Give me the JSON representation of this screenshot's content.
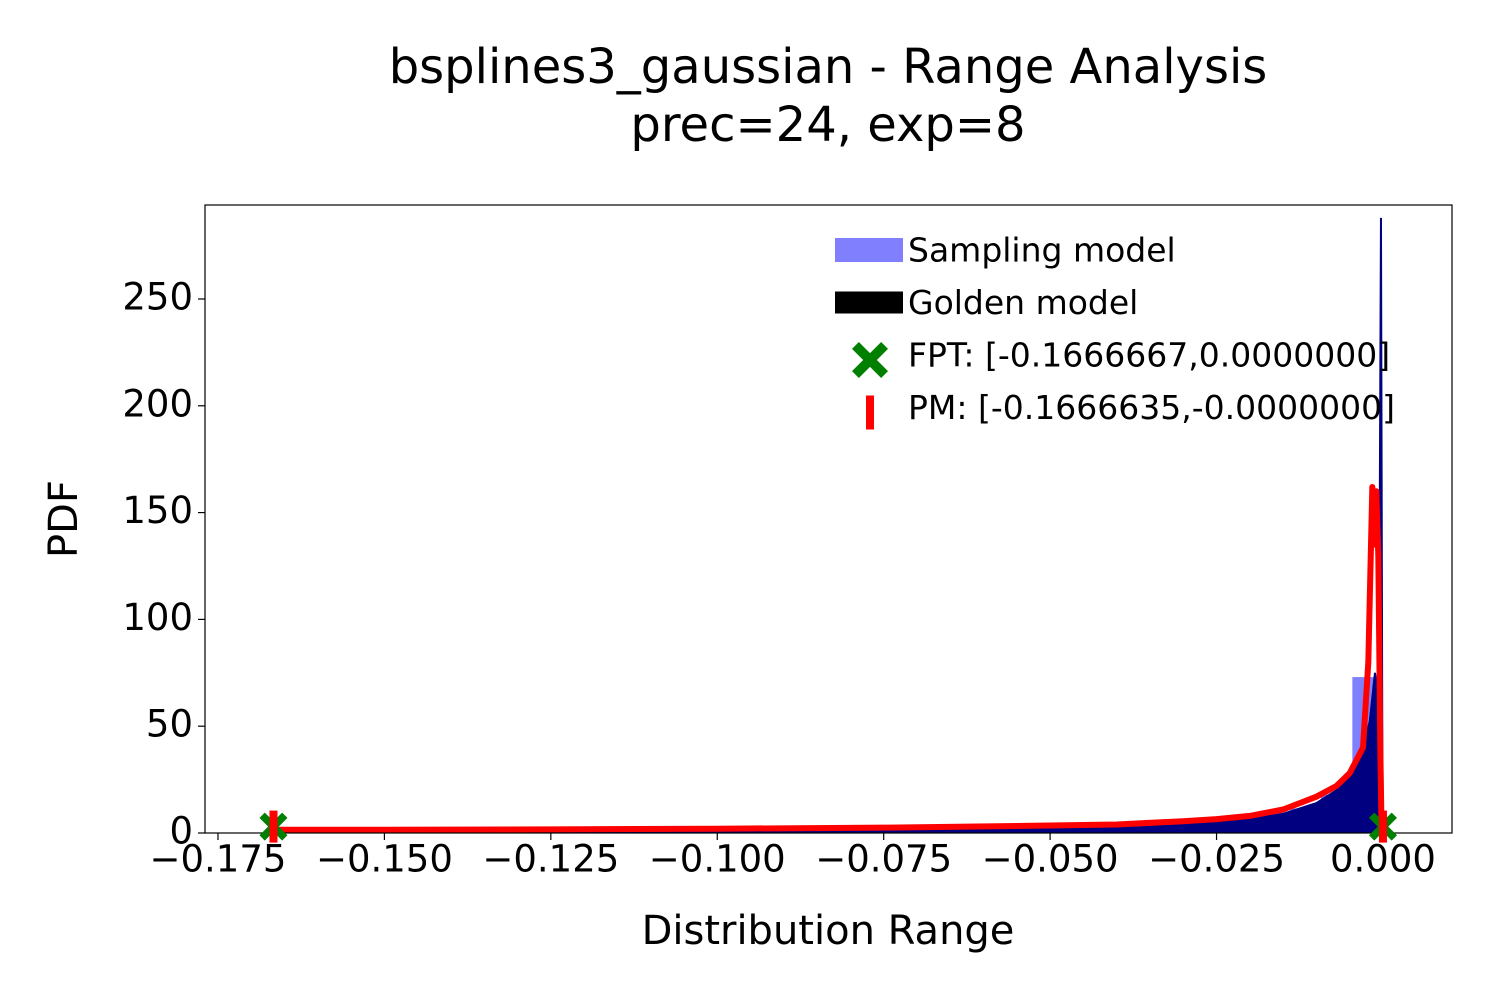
{
  "chart_data": {
    "type": "range-analysis",
    "title": "bsplines3_gaussian - Range Analysis",
    "subtitle": "prec=24, exp=8",
    "xlabel": "Distribution Range",
    "ylabel": "PDF",
    "xlim": [
      -0.17695,
      0.01037
    ],
    "ylim": [
      0,
      294
    ],
    "xticks": [
      {
        "value": -0.175,
        "label": "−0.175"
      },
      {
        "value": -0.15,
        "label": "−0.150"
      },
      {
        "value": -0.125,
        "label": "−0.125"
      },
      {
        "value": -0.1,
        "label": "−0.100"
      },
      {
        "value": -0.075,
        "label": "−0.075"
      },
      {
        "value": -0.05,
        "label": "−0.050"
      },
      {
        "value": -0.025,
        "label": "−0.025"
      },
      {
        "value": 0,
        "label": "0.000"
      }
    ],
    "yticks": [
      0,
      50,
      100,
      150,
      200,
      250
    ],
    "grid": false,
    "legend": "upper right",
    "series": [
      {
        "name": "Sampling model",
        "kind": "histogram",
        "color": "#8080ff",
        "bins": [
          -0.1667,
          -0.162,
          -0.1574,
          -0.1528,
          -0.1481,
          -0.1435,
          -0.1389,
          -0.1343,
          -0.1296,
          -0.125,
          -0.1204,
          -0.1157,
          -0.1111,
          -0.1065,
          -0.1019,
          -0.0972,
          -0.0926,
          -0.088,
          -0.0833,
          -0.0787,
          -0.0741,
          -0.0694,
          -0.0648,
          -0.0602,
          -0.0556,
          -0.0509,
          -0.0463,
          -0.0417,
          -0.037,
          -0.0324,
          -0.0278,
          -0.0231,
          -0.0185,
          -0.0139,
          -0.0093,
          -0.0046,
          0.0
        ],
        "values": [
          1.0,
          1.0,
          1.0,
          1.05,
          1.1,
          1.1,
          1.15,
          1.2,
          1.2,
          1.25,
          1.3,
          1.35,
          1.4,
          1.45,
          1.5,
          1.55,
          1.6,
          1.7,
          1.8,
          1.9,
          2.0,
          2.1,
          2.3,
          2.5,
          2.7,
          3.0,
          3.3,
          3.7,
          4.2,
          4.8,
          5.6,
          6.8,
          8.6,
          11.5,
          18,
          73
        ]
      },
      {
        "name": "Golden model",
        "kind": "area",
        "color": "#000000",
        "fill": "#000080",
        "x": [
          -0.1667,
          -0.15,
          -0.125,
          -0.1,
          -0.075,
          -0.05,
          -0.04,
          -0.03,
          -0.025,
          -0.02,
          -0.015,
          -0.01,
          -0.007,
          -0.005,
          -0.003,
          -0.002,
          -0.0012,
          -0.0006,
          -0.0003,
          -0.0001,
          0
        ],
        "values": [
          1,
          1,
          1.2,
          1.5,
          2,
          3,
          3.5,
          4.5,
          5.5,
          6.5,
          9,
          14,
          20,
          28,
          40,
          52,
          75,
          60,
          288,
          40,
          0
        ]
      },
      {
        "kind": "curve",
        "color": "#ff0000",
        "x": [
          -0.1667,
          -0.15,
          -0.125,
          -0.1,
          -0.075,
          -0.05,
          -0.04,
          -0.03,
          -0.025,
          -0.02,
          -0.015,
          -0.01,
          -0.007,
          -0.005,
          -0.003,
          -0.0022,
          -0.0016,
          -0.0013,
          -0.001,
          -0.0007,
          -0.0004,
          -0.0002
        ],
        "values": [
          1.5,
          1.5,
          1.7,
          2,
          2.5,
          3.5,
          4,
          5.5,
          6.5,
          8,
          11,
          17,
          22,
          28,
          40,
          80,
          162,
          135,
          160,
          130,
          40,
          0
        ]
      },
      {
        "name": "FPT: [-0.1666667,0.0000000]",
        "kind": "marker",
        "marker": "X",
        "color": "#008000",
        "x": [
          -0.1666667,
          0.0
        ],
        "values": [
          3,
          3
        ]
      },
      {
        "name": "PM: [-0.1666635,-0.0000000]",
        "kind": "marker",
        "marker": "|",
        "color": "#ff0000",
        "x": [
          -0.1666635,
          -0.0
        ],
        "values": [
          3,
          3
        ]
      }
    ]
  }
}
